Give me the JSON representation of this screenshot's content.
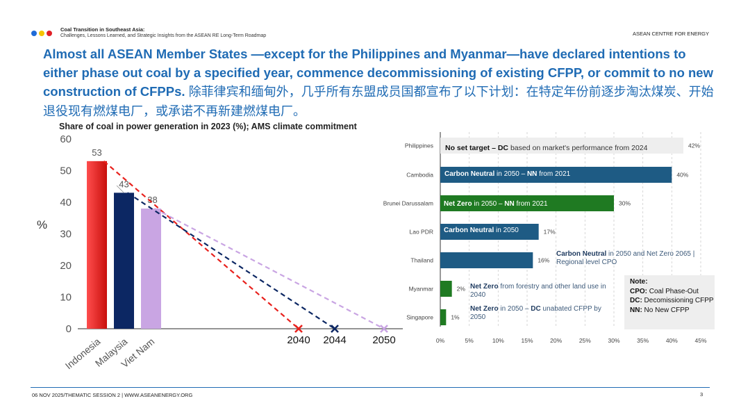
{
  "header": {
    "dot_colors": [
      "#1f6bd8",
      "#f5c400",
      "#e01f26"
    ],
    "title": "Coal Transition in Southeast Asia:",
    "subtitle": "Challenges, Lessons Learned, and Strategic Insights from the ASEAN RE Long-Term Roadmap",
    "org": "ASEAN CENTRE FOR ENERGY"
  },
  "headline": {
    "en": "Almost all ASEAN Member States —except for the Philippines and Myanmar—have declared intentions to either phase out coal by a specified year, commence decommissioning of existing CFPP, or commit to no new construction of CFPPs.",
    "zh": "除菲律宾和缅甸外，几乎所有东盟成员国都宣布了以下计划：在特定年份前逐步淘汰煤炭、开始退役现有燃煤电厂，或承诺不再新建燃煤电厂。"
  },
  "chart_title": "Share of coal in power generation in 2023 (%); AMS climate commitment",
  "chart_data": [
    {
      "type": "bar",
      "ylabel": "%",
      "ylim": [
        0,
        60
      ],
      "yticks": [
        0,
        10,
        20,
        30,
        40,
        50,
        60
      ],
      "categories": [
        "Indonesia",
        "Malaysia",
        "Viet Nam"
      ],
      "values": [
        53,
        43,
        38
      ],
      "bar_colors": [
        "#e8211d",
        "#0c2763",
        "#c9a5e3"
      ],
      "phaseout_years": [
        "2040",
        "2044",
        "2050"
      ],
      "trend_colors": [
        "#e8211d",
        "#0c2763",
        "#c9a5e3"
      ]
    },
    {
      "type": "bar",
      "orientation": "horizontal",
      "xlim": [
        0,
        45
      ],
      "xticks": [
        "0%",
        "5%",
        "10%",
        "15%",
        "20%",
        "25%",
        "30%",
        "35%",
        "40%",
        "45%"
      ],
      "categories": [
        "Philippines",
        "Cambodia",
        "Brunei Darussalam",
        "Lao PDR",
        "Thailand",
        "Myanmar",
        "Singapore"
      ],
      "values": [
        42,
        40,
        30,
        17,
        16,
        2,
        1
      ],
      "value_labels": [
        "42%",
        "40%",
        "30%",
        "17%",
        "16%",
        "2%",
        "1%"
      ],
      "bar_colors": [
        "#eeeeee",
        "#1e5b84",
        "#1f7a22",
        "#1e5b84",
        "#1e5b84",
        "#1f7a22",
        "#1f7a22"
      ],
      "labels": [
        {
          "b1": "No set target – DC",
          "t1": " based on market's performance from 2024",
          "b2": "",
          "t2": ""
        },
        {
          "b1": "Carbon Neutral",
          "t1": " in 2050 – ",
          "b2": "NN",
          "t2": " from 2021"
        },
        {
          "b1": "Net Zero",
          "t1": " in 2050 – ",
          "b2": "NN",
          "t2": " from 2021"
        },
        {
          "b1": "Carbon Neutral",
          "t1": " in 2050",
          "b2": "",
          "t2": ""
        },
        {
          "b1": "Carbon Neutral",
          "t1": " in 2050 and Net Zero 2065 | Regional level CPO",
          "b2": "",
          "t2": ""
        },
        {
          "b1": "Net Zero",
          "t1": " from forestry and other land use in 2040",
          "b2": "",
          "t2": ""
        },
        {
          "b1": "Net Zero",
          "t1": " in 2050 – ",
          "b2": "DC",
          "t2": " unabated CFPP by 2050"
        }
      ]
    }
  ],
  "note": {
    "title": "Note:",
    "items": [
      {
        "abbr": "CPO:",
        "text": " Coal Phase-Out"
      },
      {
        "abbr": "DC:",
        "text": " Decomissioning CFPP"
      },
      {
        "abbr": "NN:",
        "text": " No New CFPP"
      }
    ]
  },
  "footer": {
    "text": "06 NOV 2025/THEMATIC SESSION 2 |  WWW.ASEANENERGY.ORG",
    "page": "3"
  }
}
